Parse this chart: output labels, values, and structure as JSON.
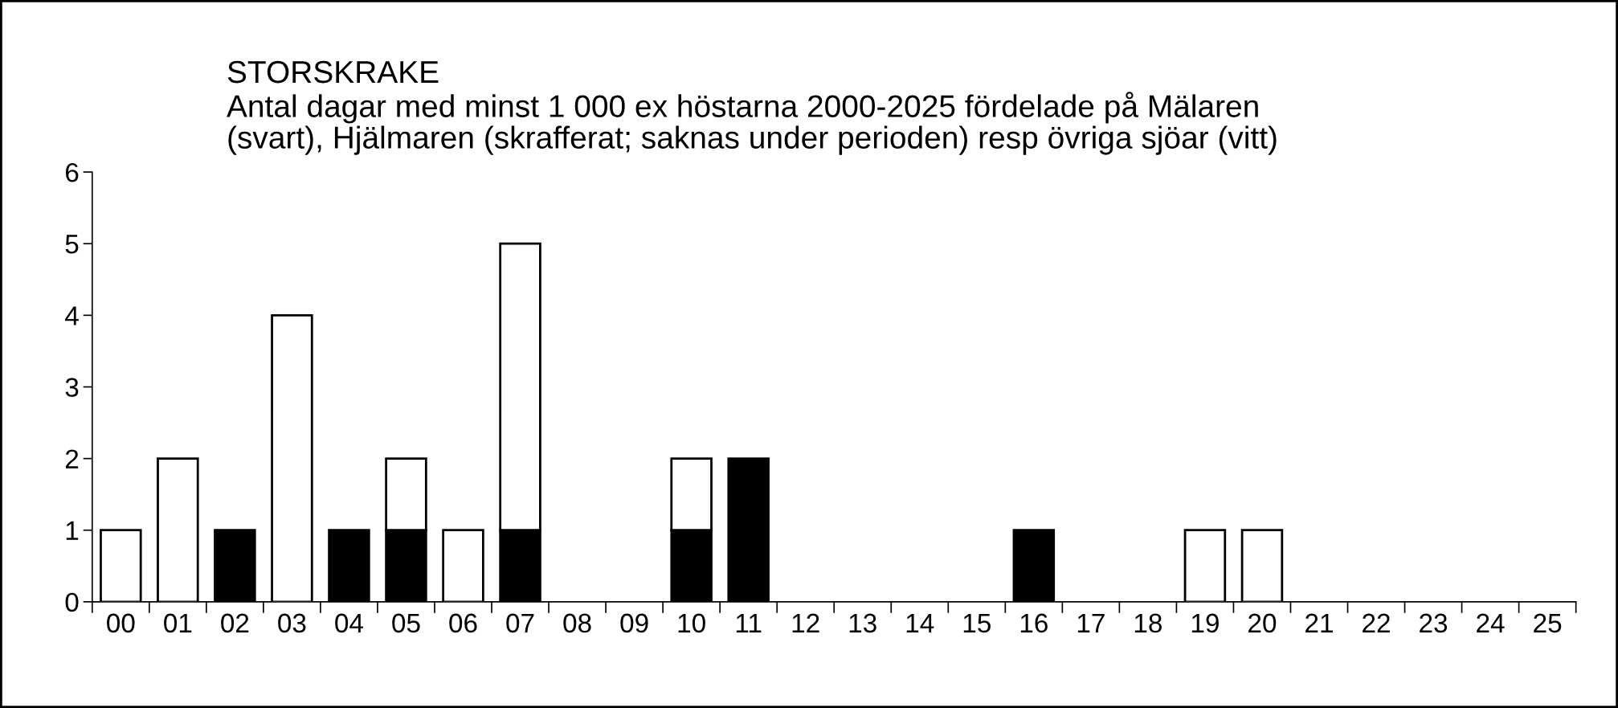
{
  "chart_data": {
    "type": "bar",
    "stacked": true,
    "title": "STORSKRAKE\nAntal dagar med minst 1 000 ex höstarna 2000-2025 fördelade på Mälaren\n(svart), Hjälmaren (skrafferat; saknas under perioden) resp övriga sjöar (vitt)",
    "categories": [
      "00",
      "01",
      "02",
      "03",
      "04",
      "05",
      "06",
      "07",
      "08",
      "09",
      "10",
      "11",
      "12",
      "13",
      "14",
      "15",
      "16",
      "17",
      "18",
      "19",
      "20",
      "21",
      "22",
      "23",
      "24",
      "25"
    ],
    "series": [
      {
        "color": "#000000",
        "values": [
          0,
          0,
          1,
          0,
          1,
          1,
          0,
          1,
          0,
          0,
          1,
          2,
          0,
          0,
          0,
          0,
          1,
          0,
          0,
          0,
          0,
          0,
          0,
          0,
          0,
          0
        ]
      },
      {
        "color": "#ffffff",
        "values": [
          1,
          2,
          0,
          4,
          0,
          1,
          1,
          4,
          0,
          0,
          1,
          0,
          0,
          0,
          0,
          0,
          0,
          0,
          0,
          1,
          1,
          0,
          0,
          0,
          0,
          0
        ]
      }
    ],
    "ylim": [
      0,
      6
    ],
    "yticks": [
      0,
      1,
      2,
      3,
      4,
      5,
      6
    ],
    "grid": false,
    "legend": false
  }
}
